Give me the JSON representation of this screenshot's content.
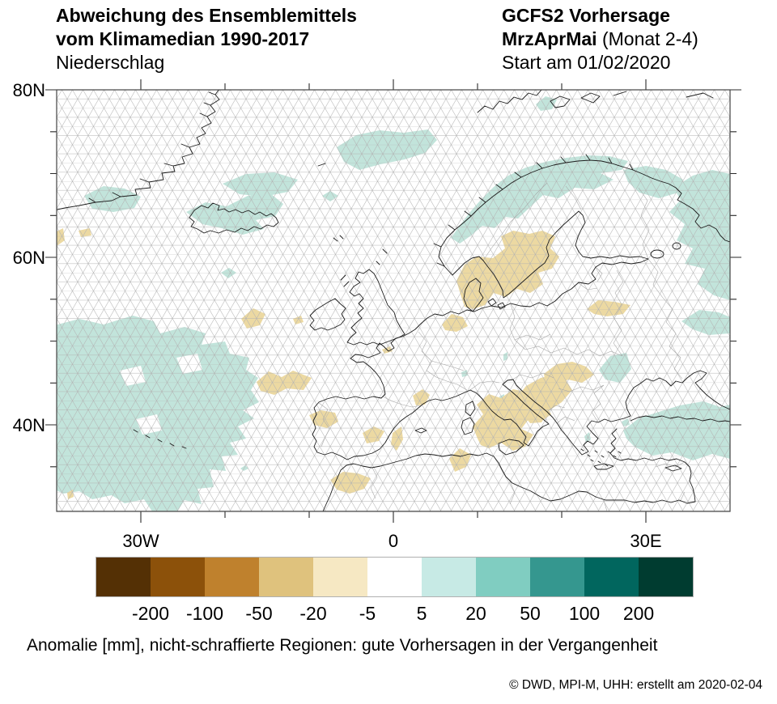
{
  "header": {
    "title_line1": "Abweichung des Ensemblemittels",
    "title_line2": "vom Klimamedian 1990-2017",
    "subtitle": "Niederschlag",
    "model_title": "GCFS2 Vorhersage",
    "period_bold": "MrzAprMai",
    "period_rest": " (Monat 2-4)",
    "start_line": "Start am 01/02/2020"
  },
  "axis": {
    "lat": [
      "80N",
      "60N",
      "40N"
    ],
    "lon": [
      "30W",
      "0",
      "30E"
    ]
  },
  "colorbar": {
    "colors": [
      "#543005",
      "#8c510a",
      "#bf812d",
      "#dfc27d",
      "#f6e8c3",
      "#ffffff",
      "#c7eae5",
      "#80cdc1",
      "#35978f",
      "#01665e",
      "#003c30"
    ],
    "tick_labels": [
      "-200",
      "-100",
      "-50",
      "-20",
      "-5",
      "5",
      "20",
      "50",
      "100",
      "200"
    ]
  },
  "caption": "Anomalie [mm], nicht-schraffierte Regionen: gute Vorhersagen in der Vergangenheit",
  "footer": "©  DWD, MPI-M, UHH: erstellt am 2020-02-04",
  "map_colors": {
    "positive_anomaly": "#c2e4db",
    "negative_anomaly": "#ecd9a2",
    "coastline": "#1c1c1c",
    "country_border": "#a3a3a3",
    "hatch": "#b2b2b2"
  }
}
